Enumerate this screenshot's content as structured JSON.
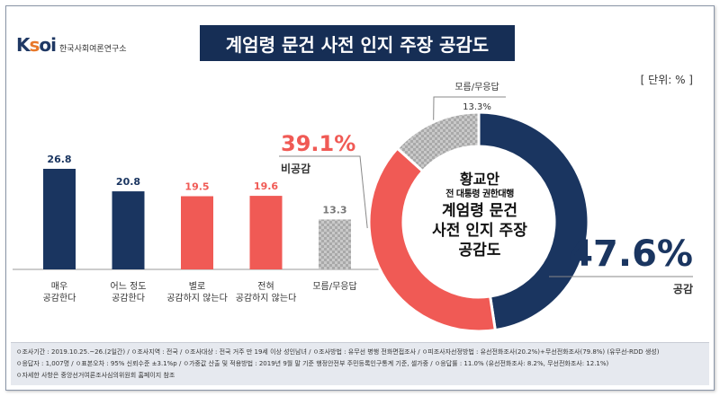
{
  "header": {
    "logo_brand": "KSOI",
    "logo_text": "한국사회여론연구소",
    "title": "계엄령 문건 사전 인지 주장 공감도",
    "unit": "[ 단위: % ]"
  },
  "colors": {
    "navy": "#1a3560",
    "red": "#f05a55",
    "gray_pattern": "#b9b9b9"
  },
  "chart_data": [
    {
      "type": "bar",
      "categories": [
        "매우\n공감한다",
        "어느 정도\n공감한다",
        "별로\n공감하지 않는다",
        "전혀\n공감하지 않는다",
        "모름/무응답"
      ],
      "values": [
        26.8,
        20.8,
        19.5,
        19.6,
        13.3
      ],
      "value_labels": [
        "26.8",
        "20.8",
        "19.5",
        "19.6",
        "13.3"
      ],
      "bar_colors": [
        "#1a3560",
        "#1a3560",
        "#f05a55",
        "#f05a55",
        "pattern"
      ],
      "label_colors": [
        "#1a3560",
        "#1a3560",
        "#f05a55",
        "#f05a55",
        "#777777"
      ],
      "ylim": [
        0,
        30
      ]
    },
    {
      "type": "pie",
      "donut": true,
      "slices": [
        {
          "label": "공감",
          "value": 47.6,
          "value_label": "47.6%",
          "color": "#1a3560"
        },
        {
          "label": "비공감",
          "value": 39.1,
          "value_label": "39.1%",
          "color": "#f05a55"
        },
        {
          "label": "모름/무응답",
          "value": 13.3,
          "value_label": "13.3%",
          "color": "pattern"
        }
      ],
      "center_label": {
        "line1": "황교안",
        "line2": "전 대통령 권한대행",
        "line3": "계엄령 문건",
        "line4": "사전 인지 주장",
        "line5": "공감도"
      }
    }
  ],
  "footer": {
    "line1": "ㅇ조사기간 : 2019.10.25.~26.(2일간)  /  ㅇ조사지역 : 전국 /  ㅇ조사대상 : 전국 거주 만 19세 이상 성인남녀  /  ㅇ조사방법 : 유무선 병행 전화면접조사  /  ㅇ피조사자선정방법 : 유선전화조사(20.2%)+무선전화조사(79.8%) (유무선-RDD 생성)",
    "line2": "ㅇ응답자 : 1,007명  /  ㅇ표본오차 : 95% 신뢰수준 ±3.1%p  /  ㅇ가중값 산출 및 적용방법 : 2019년 9월 말 기준 행정안전부 주민등록인구통계 기준, 셀가중  /  ㅇ응답률 : 11.0% (유선전화조사: 8.2%, 무선전화조사: 12.1%)",
    "line3": "ㅇ자세한 사항은 중앙선거여론조사심의위원회 홈페이지 참조"
  }
}
